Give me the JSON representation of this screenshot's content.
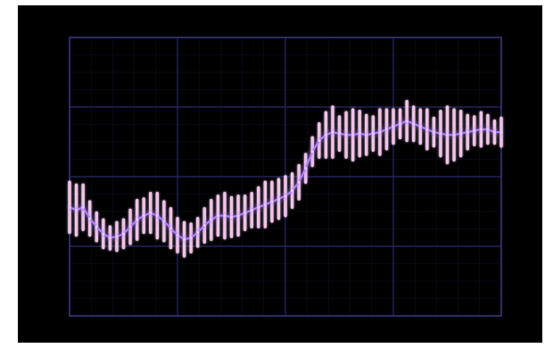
{
  "chart_data": {
    "type": "line",
    "title": "",
    "xlabel": "",
    "ylabel": "",
    "grid": true,
    "xlim": [
      0,
      64
    ],
    "ylim": [
      0,
      10
    ],
    "error_bars": true,
    "colors": {
      "background": "#000000",
      "grid": "#2a2a6a",
      "frame": "#3a3a80",
      "bar": "#f3c8ec",
      "line": "#b07cff",
      "glow": "#8a8aff"
    },
    "series": [
      {
        "x": [
          0,
          1,
          2,
          3,
          4,
          5,
          6,
          7,
          8,
          9,
          10,
          11,
          12,
          13,
          14,
          15,
          16,
          17,
          18,
          19,
          20,
          21,
          22,
          23,
          24,
          25,
          26,
          27,
          28,
          29,
          30,
          31,
          32,
          33,
          34,
          35,
          36,
          37,
          38,
          39,
          40,
          41,
          42,
          43,
          44,
          45,
          46,
          47,
          48,
          49,
          50,
          51,
          52,
          53,
          54,
          55,
          56,
          57,
          58,
          59,
          60,
          61,
          62,
          63,
          64
        ],
        "y": [
          3.9,
          3.8,
          3.9,
          3.5,
          3.2,
          2.95,
          2.8,
          2.85,
          2.95,
          3.2,
          3.45,
          3.6,
          3.7,
          3.6,
          3.4,
          3.15,
          2.9,
          2.75,
          2.8,
          3.0,
          3.25,
          3.45,
          3.6,
          3.6,
          3.55,
          3.6,
          3.7,
          3.8,
          3.9,
          4.0,
          4.1,
          4.2,
          4.3,
          4.5,
          4.8,
          5.3,
          5.9,
          6.3,
          6.5,
          6.6,
          6.55,
          6.5,
          6.5,
          6.55,
          6.5,
          6.55,
          6.6,
          6.7,
          6.8,
          6.9,
          7.0,
          6.9,
          6.8,
          6.7,
          6.6,
          6.55,
          6.5,
          6.5,
          6.55,
          6.6,
          6.65,
          6.7,
          6.7,
          6.6,
          6.6
        ],
        "err": [
          0.9,
          0.9,
          0.8,
          0.6,
          0.5,
          0.5,
          0.4,
          0.5,
          0.5,
          0.6,
          0.7,
          0.6,
          0.7,
          0.8,
          0.7,
          0.7,
          0.6,
          0.6,
          0.5,
          0.5,
          0.6,
          0.7,
          0.7,
          0.8,
          0.7,
          0.7,
          0.6,
          0.6,
          0.7,
          0.8,
          0.7,
          0.7,
          0.7,
          0.6,
          0.6,
          0.5,
          0.5,
          0.6,
          0.8,
          0.9,
          0.6,
          0.8,
          0.9,
          0.8,
          0.7,
          0.6,
          0.8,
          0.7,
          0.6,
          0.5,
          0.7,
          0.6,
          0.6,
          0.7,
          0.5,
          0.8,
          1.0,
          0.9,
          0.8,
          0.6,
          0.5,
          0.6,
          0.5,
          0.4,
          0.5
        ]
      }
    ]
  }
}
